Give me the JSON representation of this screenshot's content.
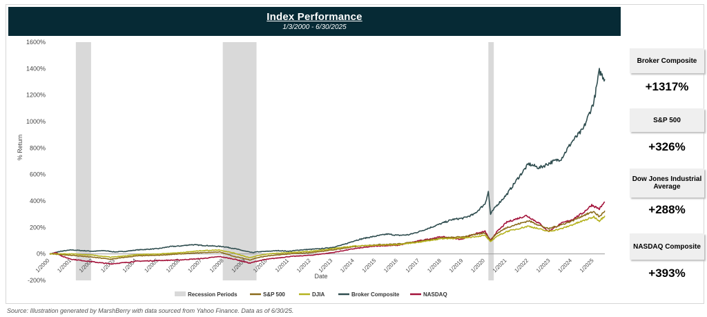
{
  "header": {
    "title": "Index Performance",
    "subtitle": "1/3/2000 - 6/30/2025"
  },
  "sidebar": [
    {
      "label": "Broker Composite",
      "value": "+1317%"
    },
    {
      "label": "S&P 500",
      "value": "+326%"
    },
    {
      "label": "Dow Jones Industrial Average",
      "value": "+288%"
    },
    {
      "label": "NASDAQ Composite",
      "value": "+393%"
    }
  ],
  "source": "Source: Illustration generated by MarshBerry with data sourced from Yahoo Finance. Data as of 6/30/25.",
  "chart_data": {
    "type": "line",
    "xlabel": "Date",
    "ylabel": "% Return",
    "ylim": [
      -200,
      1600
    ],
    "yticks": [
      -200,
      0,
      200,
      400,
      600,
      800,
      1000,
      1200,
      1400,
      1600
    ],
    "ytick_labels": [
      "-200%",
      "0%",
      "200%",
      "400%",
      "600%",
      "800%",
      "1000%",
      "1200%",
      "1400%",
      "1600%"
    ],
    "xlim": [
      2000,
      2025.5
    ],
    "xticks": [
      2000,
      2001,
      2002,
      2003,
      2004,
      2005,
      2006,
      2007,
      2008,
      2009,
      2010,
      2011,
      2012,
      2013,
      2014,
      2015,
      2016,
      2017,
      2018,
      2019,
      2020,
      2021,
      2022,
      2023,
      2024,
      2025
    ],
    "xtick_labels": [
      "1/2000",
      "1/2001",
      "1/2002",
      "1/2003",
      "1/2004",
      "1/2005",
      "1/2006",
      "1/2007",
      "1/2008",
      "1/2009",
      "1/2010",
      "1/2011",
      "1/2012",
      "1/2013",
      "1/2014",
      "1/2015",
      "1/2016",
      "1/2017",
      "1/2018",
      "1/2019",
      "1/2020",
      "1/2021",
      "1/2022",
      "1/2023",
      "1/2024",
      "1/2025"
    ],
    "recessions": [
      [
        2001.2,
        2001.9
      ],
      [
        2007.95,
        2009.5
      ],
      [
        2020.15,
        2020.4
      ]
    ],
    "grid": false,
    "legend_position": "bottom",
    "legend": [
      "Recession Periods",
      "S&P 500",
      "DJIA",
      "Broker Composite",
      "NASDAQ"
    ],
    "colors": {
      "recession": "#d9d9d9",
      "sp500": "#8a6a1a",
      "djia": "#b5b21e",
      "broker": "#2f4d4f",
      "nasdaq": "#a3123a"
    },
    "series": [
      {
        "name": "Broker Composite",
        "key": "broker",
        "x": [
          2000.0,
          2000.5,
          2001.0,
          2001.5,
          2002.0,
          2002.5,
          2003.0,
          2003.5,
          2004.0,
          2004.5,
          2005.0,
          2005.5,
          2006.0,
          2006.5,
          2007.0,
          2007.5,
          2008.0,
          2008.5,
          2009.0,
          2009.3,
          2009.5,
          2010.0,
          2010.5,
          2011.0,
          2011.5,
          2012.0,
          2012.5,
          2013.0,
          2013.5,
          2014.0,
          2014.5,
          2015.0,
          2015.5,
          2016.0,
          2016.5,
          2017.0,
          2017.5,
          2018.0,
          2018.5,
          2019.0,
          2019.5,
          2020.0,
          2020.15,
          2020.25,
          2020.5,
          2021.0,
          2021.5,
          2022.0,
          2022.5,
          2023.0,
          2023.5,
          2024.0,
          2024.5,
          2025.0,
          2025.25,
          2025.5
        ],
        "values": [
          0,
          20,
          30,
          25,
          20,
          25,
          15,
          20,
          30,
          35,
          40,
          55,
          60,
          70,
          65,
          60,
          55,
          40,
          20,
          10,
          15,
          20,
          25,
          20,
          30,
          35,
          40,
          50,
          70,
          100,
          120,
          135,
          150,
          140,
          145,
          170,
          200,
          230,
          260,
          270,
          300,
          380,
          470,
          300,
          360,
          450,
          570,
          680,
          650,
          690,
          720,
          850,
          940,
          1150,
          1380,
          1320
        ]
      },
      {
        "name": "NASDAQ",
        "key": "nasdaq",
        "x": [
          2000.0,
          2000.3,
          2000.6,
          2001.0,
          2001.5,
          2002.0,
          2002.5,
          2002.8,
          2003.5,
          2004.0,
          2005.0,
          2006.0,
          2007.0,
          2007.8,
          2008.5,
          2009.2,
          2009.5,
          2010.0,
          2010.5,
          2011.0,
          2012.0,
          2013.0,
          2014.0,
          2015.0,
          2016.0,
          2017.0,
          2018.0,
          2018.9,
          2019.5,
          2020.0,
          2020.25,
          2020.5,
          2021.0,
          2021.9,
          2022.5,
          2022.9,
          2023.5,
          2024.0,
          2024.5,
          2024.9,
          2025.25,
          2025.5
        ],
        "values": [
          0,
          10,
          -20,
          -40,
          -50,
          -60,
          -70,
          -75,
          -65,
          -55,
          -50,
          -45,
          -35,
          -20,
          -40,
          -70,
          -55,
          -40,
          -30,
          -20,
          -10,
          10,
          40,
          60,
          65,
          100,
          130,
          110,
          150,
          170,
          100,
          160,
          240,
          290,
          230,
          170,
          230,
          260,
          310,
          370,
          340,
          393
        ]
      },
      {
        "name": "S&P 500",
        "key": "sp500",
        "x": [
          2000.0,
          2001.0,
          2002.0,
          2002.8,
          2003.5,
          2004.0,
          2005.0,
          2006.0,
          2007.0,
          2007.8,
          2008.5,
          2009.2,
          2009.5,
          2010.0,
          2011.0,
          2012.0,
          2013.0,
          2014.0,
          2015.0,
          2016.0,
          2017.0,
          2018.0,
          2019.0,
          2020.0,
          2020.25,
          2020.5,
          2021.0,
          2022.0,
          2022.9,
          2023.5,
          2024.0,
          2024.5,
          2025.0,
          2025.25,
          2025.5
        ],
        "values": [
          0,
          -10,
          -25,
          -40,
          -25,
          -15,
          -10,
          0,
          10,
          15,
          -20,
          -45,
          -30,
          -15,
          0,
          10,
          30,
          55,
          70,
          75,
          95,
          120,
          130,
          160,
          100,
          150,
          200,
          250,
          190,
          220,
          250,
          290,
          320,
          280,
          326
        ]
      },
      {
        "name": "DJIA",
        "key": "djia",
        "x": [
          2000.0,
          2001.0,
          2002.0,
          2002.8,
          2003.5,
          2004.0,
          2005.0,
          2006.0,
          2007.0,
          2007.8,
          2008.5,
          2009.2,
          2009.5,
          2010.0,
          2011.0,
          2012.0,
          2013.0,
          2014.0,
          2015.0,
          2016.0,
          2017.0,
          2018.0,
          2019.0,
          2020.0,
          2020.25,
          2020.5,
          2021.0,
          2022.0,
          2022.9,
          2023.5,
          2024.0,
          2024.5,
          2025.0,
          2025.25,
          2025.5
        ],
        "values": [
          0,
          0,
          -10,
          -25,
          -15,
          -5,
          0,
          10,
          25,
          30,
          5,
          -30,
          -15,
          0,
          10,
          20,
          40,
          60,
          65,
          70,
          90,
          115,
          120,
          140,
          90,
          130,
          170,
          210,
          170,
          190,
          220,
          250,
          280,
          250,
          288
        ]
      }
    ]
  }
}
